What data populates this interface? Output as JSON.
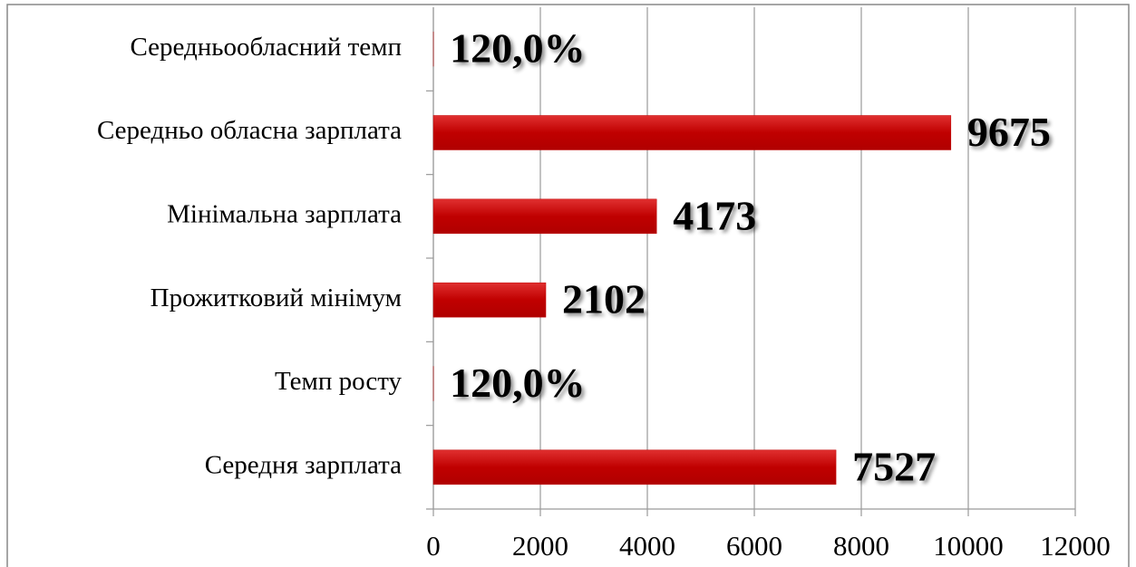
{
  "chart_data": {
    "type": "bar",
    "orientation": "horizontal",
    "categories": [
      "Середньообласний темп",
      "Середньо обласна зарплата",
      "Мінімальна зарплата",
      "Прожитковий мінімум",
      "Темп росту",
      "Середня зарплата"
    ],
    "values": [
      1.2,
      9675,
      4173,
      2102,
      1.2,
      7527
    ],
    "value_labels": [
      "120,0%",
      "9675",
      "4173",
      "2102",
      "120,0%",
      "7527"
    ],
    "color": "#c00000",
    "xlim": [
      0,
      12000
    ],
    "xticks": [
      0,
      2000,
      4000,
      6000,
      8000,
      10000,
      12000
    ],
    "grid": true
  }
}
